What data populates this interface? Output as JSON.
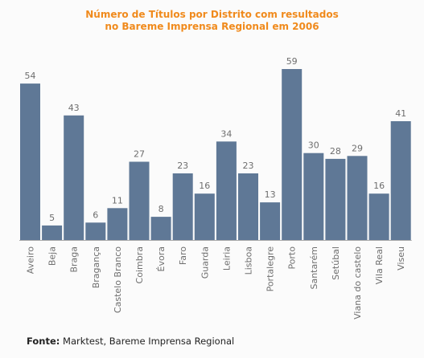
{
  "title": {
    "line1": "Número de Títulos por Distrito com resultados",
    "line2": "no Bareme Imprensa Regional em 2006"
  },
  "source": {
    "label": "Fonte:",
    "text": "Marktest, Bareme Imprensa Regional"
  },
  "colors": {
    "title": "#f08a1c",
    "bar": "#5f7896",
    "axis": "#aaaaaa",
    "label": "#6e6e6e"
  },
  "chart_data": {
    "type": "bar",
    "title": "Número de Títulos por Distrito com resultados no Bareme Imprensa Regional em 2006",
    "categories": [
      "Aveiro",
      "Beja",
      "Braga",
      "Bragança",
      "Castelo Branco",
      "Coimbra",
      "Évora",
      "Faro",
      "Guarda",
      "Leiria",
      "Lisboa",
      "Portalegre",
      "Porto",
      "Santarém",
      "Setúbal",
      "Viana do castelo",
      "Vila Real",
      "Viseu"
    ],
    "values": [
      54,
      5,
      43,
      6,
      11,
      27,
      8,
      23,
      16,
      34,
      23,
      13,
      59,
      30,
      28,
      29,
      16,
      41
    ],
    "data_labels": true,
    "xlabel": "",
    "ylabel": "",
    "ylim": [
      0,
      59
    ],
    "grid": false,
    "legend": "none"
  }
}
